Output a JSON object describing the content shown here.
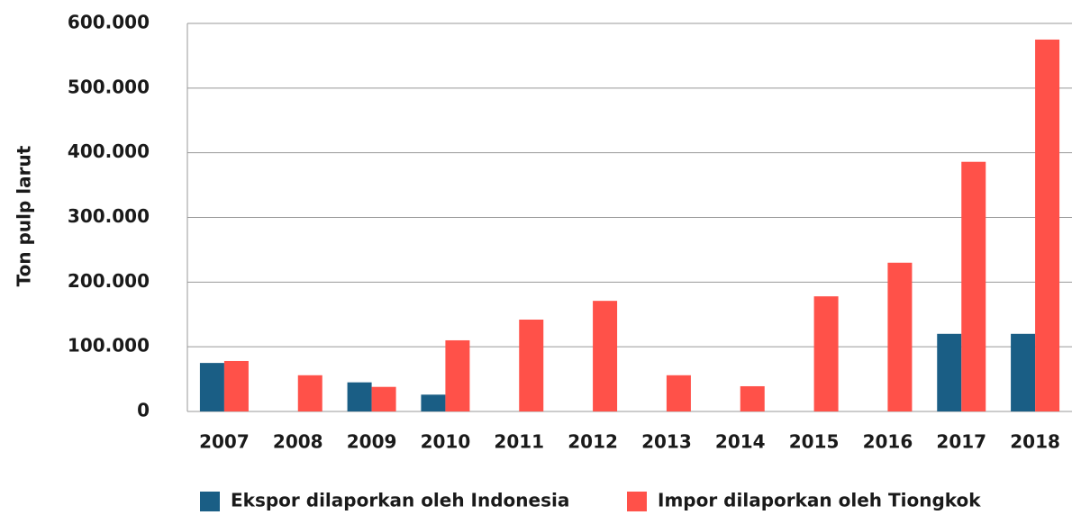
{
  "chart_data": {
    "type": "bar",
    "y_label": "Ton pulp larut",
    "categories": [
      "2007",
      "2008",
      "2009",
      "2010",
      "2011",
      "2012",
      "2013",
      "2014",
      "2015",
      "2016",
      "2017",
      "2018"
    ],
    "series": [
      {
        "name": "Ekspor dilaporkan oleh Indonesia",
        "color": "#1a5e85",
        "values": [
          75000,
          0,
          45000,
          26000,
          0,
          0,
          0,
          0,
          0,
          0,
          120000,
          120000
        ]
      },
      {
        "name": "Impor dilaporkan oleh Tiongkok",
        "color": "#ff5149",
        "values": [
          78000,
          56000,
          38000,
          110000,
          142000,
          171000,
          56000,
          39000,
          178000,
          230000,
          386000,
          575000
        ]
      }
    ],
    "ylim": [
      0,
      600000
    ],
    "yticks": [
      0,
      {
        "value": 100000,
        "label": "100.000"
      },
      {
        "value": 200000,
        "label": "200.000"
      },
      {
        "value": 300000,
        "label": "300.000"
      },
      {
        "value": 400000,
        "label": "400.000"
      },
      {
        "value": 500000,
        "label": "500.000"
      },
      {
        "value": 600000,
        "label": "600.000"
      }
    ],
    "grid": true
  }
}
